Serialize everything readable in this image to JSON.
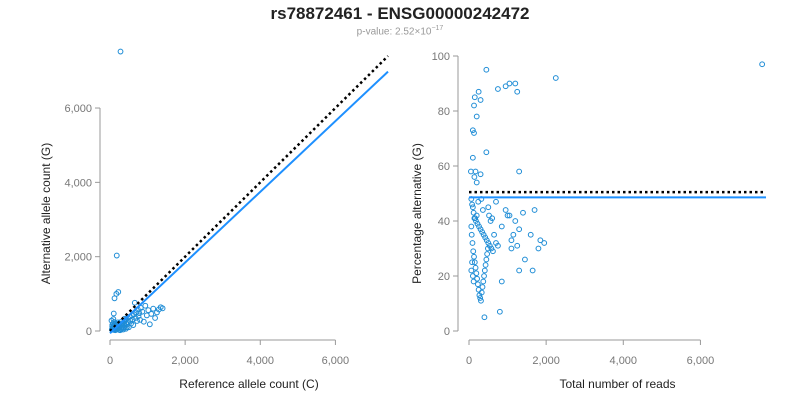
{
  "header": {
    "title": "rs78872461 - ENSG00000242472",
    "pvalue_prefix": "p-value: 2.52×10",
    "pvalue_exponent": "−17"
  },
  "colors": {
    "point": "#1f8dd6",
    "fit_line": "#1e90ff",
    "reference_line": "#000000",
    "axis": "#999999"
  },
  "chart_data": [
    {
      "type": "scatter",
      "xlabel": "Reference allele count (C)",
      "ylabel": "Alternative allele count (G)",
      "xlim": [
        0,
        7400
      ],
      "ylim": [
        0,
        7400
      ],
      "xticks": [
        0,
        2000,
        4000,
        6000
      ],
      "xtick_labels": [
        "0",
        "2,000",
        "4,000",
        "6,000"
      ],
      "yticks": [
        0,
        2000,
        4000,
        6000
      ],
      "ytick_labels": [
        "0",
        "2,000",
        "4,000",
        "6,000"
      ],
      "points": [
        [
          280,
          7520
        ],
        [
          180,
          2030
        ],
        [
          170,
          1000
        ],
        [
          220,
          1050
        ],
        [
          120,
          880
        ],
        [
          100,
          470
        ],
        [
          60,
          120
        ],
        [
          80,
          90
        ],
        [
          100,
          60
        ],
        [
          120,
          40
        ],
        [
          140,
          20
        ],
        [
          160,
          80
        ],
        [
          180,
          110
        ],
        [
          200,
          60
        ],
        [
          220,
          140
        ],
        [
          240,
          30
        ],
        [
          260,
          90
        ],
        [
          280,
          160
        ],
        [
          300,
          50
        ],
        [
          320,
          120
        ],
        [
          340,
          200
        ],
        [
          360,
          90
        ],
        [
          380,
          260
        ],
        [
          400,
          150
        ],
        [
          420,
          60
        ],
        [
          440,
          320
        ],
        [
          460,
          180
        ],
        [
          480,
          240
        ],
        [
          500,
          100
        ],
        [
          520,
          380
        ],
        [
          540,
          280
        ],
        [
          560,
          200
        ],
        [
          580,
          420
        ],
        [
          600,
          310
        ],
        [
          620,
          160
        ],
        [
          640,
          450
        ],
        [
          660,
          760
        ],
        [
          680,
          350
        ],
        [
          700,
          500
        ],
        [
          720,
          270
        ],
        [
          740,
          580
        ],
        [
          760,
          400
        ],
        [
          780,
          480
        ],
        [
          800,
          300
        ],
        [
          820,
          620
        ],
        [
          860,
          520
        ],
        [
          900,
          250
        ],
        [
          940,
          680
        ],
        [
          980,
          420
        ],
        [
          1020,
          560
        ],
        [
          1060,
          180
        ],
        [
          1100,
          460
        ],
        [
          1150,
          600
        ],
        [
          1200,
          350
        ],
        [
          1250,
          500
        ],
        [
          1300,
          580
        ],
        [
          1350,
          640
        ],
        [
          1400,
          610
        ],
        [
          80,
          200
        ],
        [
          60,
          160
        ],
        [
          40,
          280
        ],
        [
          90,
          320
        ],
        [
          110,
          240
        ],
        [
          130,
          180
        ],
        [
          150,
          30
        ],
        [
          170,
          160
        ],
        [
          190,
          190
        ],
        [
          210,
          230
        ],
        [
          230,
          70
        ],
        [
          250,
          200
        ],
        [
          270,
          20
        ],
        [
          290,
          240
        ],
        [
          310,
          180
        ],
        [
          330,
          80
        ],
        [
          350,
          40
        ],
        [
          370,
          190
        ],
        [
          390,
          330
        ],
        [
          410,
          280
        ],
        [
          430,
          210
        ],
        [
          450,
          100
        ],
        [
          70,
          60
        ],
        [
          90,
          30
        ],
        [
          110,
          100
        ],
        [
          130,
          130
        ],
        [
          50,
          40
        ],
        [
          100,
          140
        ],
        [
          140,
          70
        ],
        [
          160,
          190
        ],
        [
          200,
          100
        ],
        [
          240,
          150
        ]
      ],
      "fit_line": [
        [
          0,
          -60
        ],
        [
          7400,
          6980
        ]
      ],
      "reference_line": [
        [
          0,
          0
        ],
        [
          7400,
          7400
        ]
      ]
    },
    {
      "type": "scatter",
      "xlabel": "Total number of reads",
      "ylabel": "Percentage alternative (G)",
      "xlim": [
        0,
        7700
      ],
      "ylim": [
        0,
        100
      ],
      "xticks": [
        0,
        2000,
        4000,
        6000
      ],
      "xtick_labels": [
        "0",
        "2,000",
        "4,000",
        "6,000"
      ],
      "yticks": [
        0,
        20,
        40,
        60,
        80,
        100
      ],
      "ytick_labels": [
        "0",
        "20",
        "40",
        "60",
        "80",
        "100"
      ],
      "points": [
        [
          7600,
          97
        ],
        [
          2250,
          92
        ],
        [
          450,
          95
        ],
        [
          1200,
          90
        ],
        [
          1050,
          90
        ],
        [
          950,
          89
        ],
        [
          750,
          88
        ],
        [
          250,
          87
        ],
        [
          300,
          84
        ],
        [
          150,
          85
        ],
        [
          130,
          82
        ],
        [
          1250,
          87
        ],
        [
          200,
          78
        ],
        [
          100,
          73
        ],
        [
          130,
          72
        ],
        [
          450,
          65
        ],
        [
          100,
          63
        ],
        [
          170,
          58
        ],
        [
          50,
          58
        ],
        [
          140,
          56
        ],
        [
          300,
          57
        ],
        [
          1300,
          58
        ],
        [
          200,
          54
        ],
        [
          700,
          47
        ],
        [
          1700,
          44
        ],
        [
          1400,
          43
        ],
        [
          1000,
          42
        ],
        [
          1200,
          40
        ],
        [
          850,
          38
        ],
        [
          1300,
          37
        ],
        [
          1600,
          35
        ],
        [
          1850,
          33
        ],
        [
          1950,
          32
        ],
        [
          1800,
          30
        ],
        [
          1450,
          26
        ],
        [
          1650,
          22
        ],
        [
          1300,
          22
        ],
        [
          850,
          18
        ],
        [
          800,
          7
        ],
        [
          400,
          5
        ],
        [
          60,
          48
        ],
        [
          80,
          46
        ],
        [
          100,
          45
        ],
        [
          120,
          43
        ],
        [
          160,
          41
        ],
        [
          180,
          40
        ],
        [
          220,
          39
        ],
        [
          260,
          38
        ],
        [
          300,
          37
        ],
        [
          340,
          36
        ],
        [
          380,
          35
        ],
        [
          420,
          34
        ],
        [
          460,
          33
        ],
        [
          500,
          32
        ],
        [
          540,
          31
        ],
        [
          580,
          30
        ],
        [
          620,
          29
        ],
        [
          60,
          38
        ],
        [
          70,
          35
        ],
        [
          90,
          32
        ],
        [
          110,
          29
        ],
        [
          130,
          27
        ],
        [
          150,
          25
        ],
        [
          170,
          23
        ],
        [
          190,
          21
        ],
        [
          210,
          19
        ],
        [
          230,
          17
        ],
        [
          250,
          15
        ],
        [
          270,
          13
        ],
        [
          290,
          12
        ],
        [
          310,
          11
        ],
        [
          330,
          14
        ],
        [
          350,
          16
        ],
        [
          370,
          18
        ],
        [
          390,
          20
        ],
        [
          410,
          22
        ],
        [
          430,
          24
        ],
        [
          450,
          26
        ],
        [
          470,
          28
        ],
        [
          490,
          30
        ],
        [
          60,
          22
        ],
        [
          80,
          25
        ],
        [
          100,
          20
        ],
        [
          120,
          18
        ],
        [
          140,
          41
        ],
        [
          200,
          42
        ],
        [
          240,
          47
        ],
        [
          320,
          48
        ],
        [
          360,
          44
        ],
        [
          520,
          42
        ],
        [
          600,
          41
        ],
        [
          1100,
          33
        ],
        [
          1150,
          35
        ],
        [
          1250,
          31
        ],
        [
          1100,
          30
        ],
        [
          650,
          35
        ],
        [
          700,
          32
        ],
        [
          950,
          44
        ],
        [
          1050,
          42
        ],
        [
          750,
          31
        ],
        [
          500,
          45
        ],
        [
          560,
          40
        ]
      ],
      "fit_line": [
        [
          0,
          48.6
        ],
        [
          7700,
          48.6
        ]
      ],
      "reference_line": [
        [
          0,
          50.5
        ],
        [
          7700,
          50.5
        ]
      ]
    }
  ]
}
